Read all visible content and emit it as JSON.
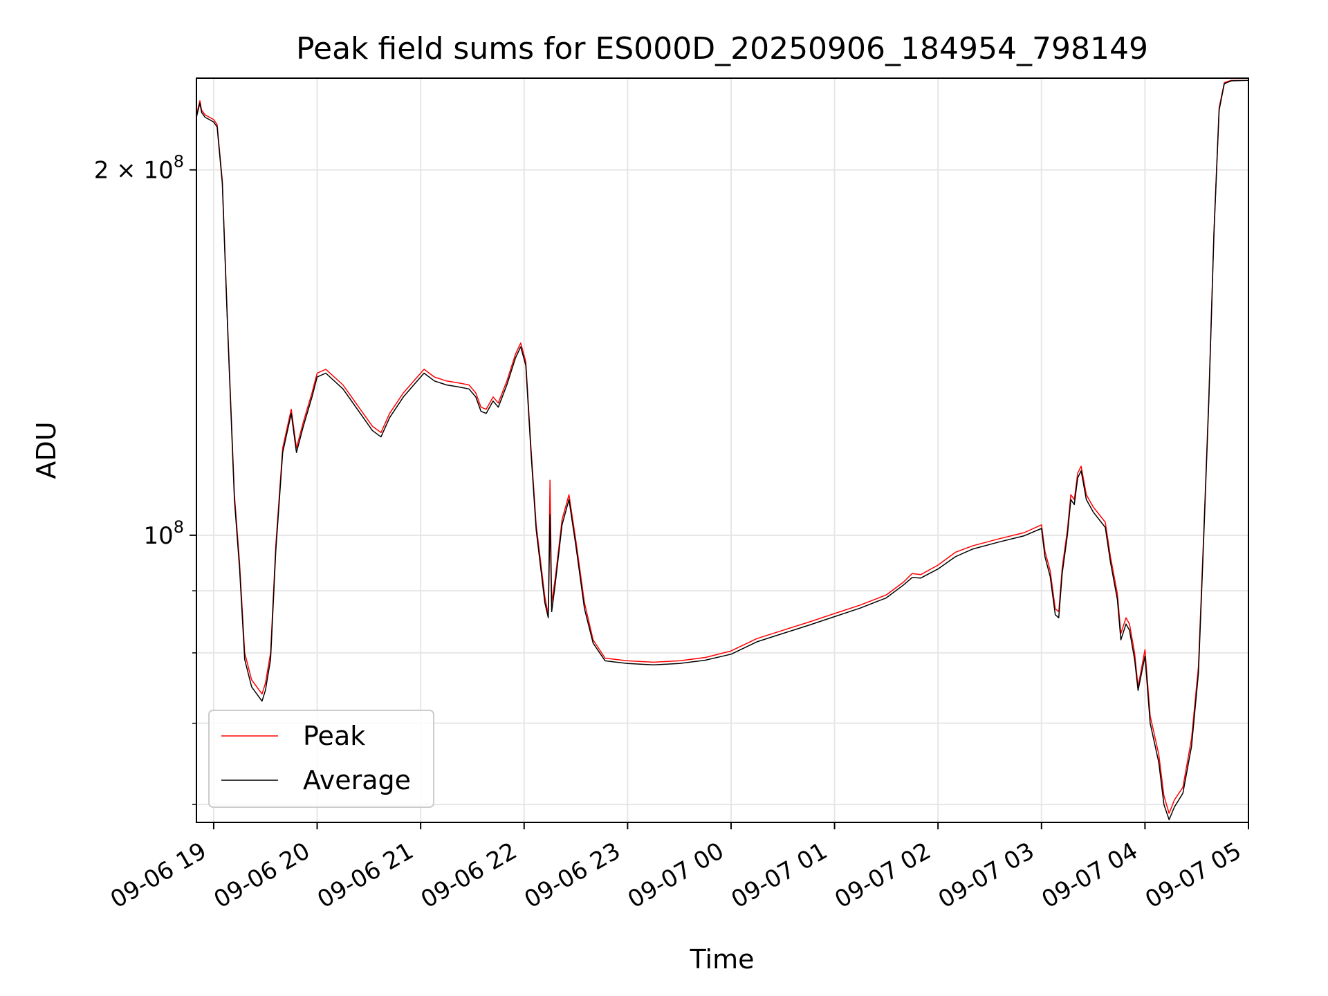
{
  "chart_data": {
    "type": "line",
    "title": "Peak field sums for ES000D_20250906_184954_798149",
    "xlabel": "Time",
    "ylabel": "ADU",
    "y_scale": "log",
    "ylim": [
      58000000,
      238000000
    ],
    "xlim": [
      "2025-09-06 18:50",
      "2025-09-07 05:00"
    ],
    "grid": true,
    "legend_position": "lower-left",
    "x_ticks": [
      {
        "label": "09-06 19",
        "t": "2025-09-06 19:00"
      },
      {
        "label": "09-06 20",
        "t": "2025-09-06 20:00"
      },
      {
        "label": "09-06 21",
        "t": "2025-09-06 21:00"
      },
      {
        "label": "09-06 22",
        "t": "2025-09-06 22:00"
      },
      {
        "label": "09-06 23",
        "t": "2025-09-06 23:00"
      },
      {
        "label": "09-07 00",
        "t": "2025-09-07 00:00"
      },
      {
        "label": "09-07 01",
        "t": "2025-09-07 01:00"
      },
      {
        "label": "09-07 02",
        "t": "2025-09-07 02:00"
      },
      {
        "label": "09-07 03",
        "t": "2025-09-07 03:00"
      },
      {
        "label": "09-07 04",
        "t": "2025-09-07 04:00"
      },
      {
        "label": "09-07 05",
        "t": "2025-09-07 05:00"
      }
    ],
    "y_ticks_major": [
      {
        "value": 100000000,
        "base": "10",
        "exp": "8",
        "prefix": ""
      },
      {
        "value": 200000000,
        "base": "10",
        "exp": "8",
        "prefix": "2 × "
      }
    ],
    "y_ticks_minor": [
      60000000,
      70000000,
      80000000,
      90000000
    ],
    "series": [
      {
        "name": "Peak",
        "color": "#ff0000",
        "points": [
          [
            "2025-09-06 18:50",
            222000000
          ],
          [
            "2025-09-06 18:52",
            228000000
          ],
          [
            "2025-09-06 18:53",
            224000000
          ],
          [
            "2025-09-06 18:55",
            222000000
          ],
          [
            "2025-09-06 19:00",
            220000000
          ],
          [
            "2025-09-06 19:02",
            218000000
          ],
          [
            "2025-09-06 19:05",
            196000000
          ],
          [
            "2025-09-06 19:08",
            150000000
          ],
          [
            "2025-09-06 19:12",
            108000000
          ],
          [
            "2025-09-06 19:15",
            95000000
          ],
          [
            "2025-09-06 19:18",
            80000000
          ],
          [
            "2025-09-06 19:22",
            76000000
          ],
          [
            "2025-09-06 19:28",
            74000000
          ],
          [
            "2025-09-06 19:30",
            75500000
          ],
          [
            "2025-09-06 19:33",
            80000000
          ],
          [
            "2025-09-06 19:36",
            98000000
          ],
          [
            "2025-09-06 19:40",
            118000000
          ],
          [
            "2025-09-06 19:45",
            127000000
          ],
          [
            "2025-09-06 19:48",
            118000000
          ],
          [
            "2025-09-06 19:52",
            124000000
          ],
          [
            "2025-09-06 19:57",
            131000000
          ],
          [
            "2025-09-06 20:00",
            136000000
          ],
          [
            "2025-09-06 20:05",
            137000000
          ],
          [
            "2025-09-06 20:15",
            133000000
          ],
          [
            "2025-09-06 20:25",
            127000000
          ],
          [
            "2025-09-06 20:32",
            123000000
          ],
          [
            "2025-09-06 20:37",
            121500000
          ],
          [
            "2025-09-06 20:42",
            126000000
          ],
          [
            "2025-09-06 20:50",
            131000000
          ],
          [
            "2025-09-06 20:57",
            134500000
          ],
          [
            "2025-09-06 21:02",
            137000000
          ],
          [
            "2025-09-06 21:08",
            135000000
          ],
          [
            "2025-09-06 21:15",
            134000000
          ],
          [
            "2025-09-06 21:22",
            133500000
          ],
          [
            "2025-09-06 21:28",
            133000000
          ],
          [
            "2025-09-06 21:32",
            131000000
          ],
          [
            "2025-09-06 21:35",
            127500000
          ],
          [
            "2025-09-06 21:38",
            127000000
          ],
          [
            "2025-09-06 21:42",
            130000000
          ],
          [
            "2025-09-06 21:45",
            128500000
          ],
          [
            "2025-09-06 21:50",
            134000000
          ],
          [
            "2025-09-06 21:55",
            141000000
          ],
          [
            "2025-09-06 21:58",
            144000000
          ],
          [
            "2025-09-06 22:01",
            139000000
          ],
          [
            "2025-09-06 22:04",
            118000000
          ],
          [
            "2025-09-06 22:07",
            102000000
          ],
          [
            "2025-09-06 22:10",
            94000000
          ],
          [
            "2025-09-06 22:12",
            89000000
          ],
          [
            "2025-09-06 22:14",
            86000000
          ],
          [
            "2025-09-06 22:15",
            111000000
          ],
          [
            "2025-09-06 22:16",
            88000000
          ],
          [
            "2025-09-06 22:18",
            92000000
          ],
          [
            "2025-09-06 22:22",
            103000000
          ],
          [
            "2025-09-06 22:26",
            108000000
          ],
          [
            "2025-09-06 22:30",
            99000000
          ],
          [
            "2025-09-06 22:35",
            88000000
          ],
          [
            "2025-09-06 22:40",
            82000000
          ],
          [
            "2025-09-06 22:47",
            79200000
          ],
          [
            "2025-09-06 23:00",
            78800000
          ],
          [
            "2025-09-06 23:15",
            78600000
          ],
          [
            "2025-09-06 23:30",
            78800000
          ],
          [
            "2025-09-06 23:45",
            79300000
          ],
          [
            "2025-09-07 00:00",
            80300000
          ],
          [
            "2025-09-07 00:15",
            82200000
          ],
          [
            "2025-09-07 00:30",
            83500000
          ],
          [
            "2025-09-07 00:45",
            84800000
          ],
          [
            "2025-09-07 01:00",
            86200000
          ],
          [
            "2025-09-07 01:15",
            87600000
          ],
          [
            "2025-09-07 01:30",
            89300000
          ],
          [
            "2025-09-07 01:40",
            91500000
          ],
          [
            "2025-09-07 01:45",
            93000000
          ],
          [
            "2025-09-07 01:50",
            92800000
          ],
          [
            "2025-09-07 02:00",
            94500000
          ],
          [
            "2025-09-07 02:10",
            96800000
          ],
          [
            "2025-09-07 02:20",
            98000000
          ],
          [
            "2025-09-07 02:35",
            99300000
          ],
          [
            "2025-09-07 02:50",
            100500000
          ],
          [
            "2025-09-07 03:00",
            102000000
          ],
          [
            "2025-09-07 03:02",
            97000000
          ],
          [
            "2025-09-07 03:05",
            93500000
          ],
          [
            "2025-09-07 03:08",
            87000000
          ],
          [
            "2025-09-07 03:10",
            86500000
          ],
          [
            "2025-09-07 03:12",
            94000000
          ],
          [
            "2025-09-07 03:15",
            101000000
          ],
          [
            "2025-09-07 03:17",
            108000000
          ],
          [
            "2025-09-07 03:19",
            107000000
          ],
          [
            "2025-09-07 03:21",
            112500000
          ],
          [
            "2025-09-07 03:23",
            114000000
          ],
          [
            "2025-09-07 03:26",
            108000000
          ],
          [
            "2025-09-07 03:30",
            105500000
          ],
          [
            "2025-09-07 03:37",
            102500000
          ],
          [
            "2025-09-07 03:40",
            96000000
          ],
          [
            "2025-09-07 03:44",
            89500000
          ],
          [
            "2025-09-07 03:46",
            83000000
          ],
          [
            "2025-09-07 03:49",
            85500000
          ],
          [
            "2025-09-07 03:51",
            84500000
          ],
          [
            "2025-09-07 03:54",
            80000000
          ],
          [
            "2025-09-07 03:56",
            75000000
          ],
          [
            "2025-09-07 04:00",
            80500000
          ],
          [
            "2025-09-07 04:03",
            71000000
          ],
          [
            "2025-09-07 04:08",
            66000000
          ],
          [
            "2025-09-07 04:11",
            61000000
          ],
          [
            "2025-09-07 04:14",
            59000000
          ],
          [
            "2025-09-07 04:17",
            60500000
          ],
          [
            "2025-09-07 04:22",
            62000000
          ],
          [
            "2025-09-07 04:27",
            68000000
          ],
          [
            "2025-09-07 04:31",
            78000000
          ],
          [
            "2025-09-07 04:34",
            100000000
          ],
          [
            "2025-09-07 04:37",
            130000000
          ],
          [
            "2025-09-07 04:40",
            178000000
          ],
          [
            "2025-09-07 04:43",
            225000000
          ],
          [
            "2025-09-07 04:46",
            236000000
          ],
          [
            "2025-09-07 04:50",
            237000000
          ],
          [
            "2025-09-07 05:00",
            237000000
          ]
        ]
      },
      {
        "name": "Average",
        "color": "#000000",
        "points": [
          [
            "2025-09-06 18:50",
            221000000
          ],
          [
            "2025-09-06 18:52",
            227000000
          ],
          [
            "2025-09-06 18:53",
            223000000
          ],
          [
            "2025-09-06 18:55",
            221000000
          ],
          [
            "2025-09-06 19:00",
            219000000
          ],
          [
            "2025-09-06 19:02",
            217000000
          ],
          [
            "2025-09-06 19:05",
            195000000
          ],
          [
            "2025-09-06 19:08",
            149000000
          ],
          [
            "2025-09-06 19:12",
            107000000
          ],
          [
            "2025-09-06 19:15",
            94000000
          ],
          [
            "2025-09-06 19:18",
            79000000
          ],
          [
            "2025-09-06 19:22",
            75000000
          ],
          [
            "2025-09-06 19:28",
            73000000
          ],
          [
            "2025-09-06 19:30",
            74500000
          ],
          [
            "2025-09-06 19:33",
            79000000
          ],
          [
            "2025-09-06 19:36",
            97000000
          ],
          [
            "2025-09-06 19:40",
            117000000
          ],
          [
            "2025-09-06 19:45",
            126000000
          ],
          [
            "2025-09-06 19:48",
            117000000
          ],
          [
            "2025-09-06 19:52",
            123000000
          ],
          [
            "2025-09-06 19:57",
            130000000
          ],
          [
            "2025-09-06 20:00",
            135000000
          ],
          [
            "2025-09-06 20:05",
            136000000
          ],
          [
            "2025-09-06 20:15",
            132000000
          ],
          [
            "2025-09-06 20:25",
            126000000
          ],
          [
            "2025-09-06 20:32",
            122000000
          ],
          [
            "2025-09-06 20:37",
            120500000
          ],
          [
            "2025-09-06 20:42",
            125000000
          ],
          [
            "2025-09-06 20:50",
            130000000
          ],
          [
            "2025-09-06 20:57",
            133500000
          ],
          [
            "2025-09-06 21:02",
            136000000
          ],
          [
            "2025-09-06 21:08",
            134000000
          ],
          [
            "2025-09-06 21:15",
            133000000
          ],
          [
            "2025-09-06 21:22",
            132500000
          ],
          [
            "2025-09-06 21:28",
            132000000
          ],
          [
            "2025-09-06 21:32",
            130000000
          ],
          [
            "2025-09-06 21:35",
            126500000
          ],
          [
            "2025-09-06 21:38",
            126000000
          ],
          [
            "2025-09-06 21:42",
            129000000
          ],
          [
            "2025-09-06 21:45",
            127500000
          ],
          [
            "2025-09-06 21:50",
            133000000
          ],
          [
            "2025-09-06 21:55",
            140000000
          ],
          [
            "2025-09-06 21:58",
            143000000
          ],
          [
            "2025-09-06 22:01",
            138000000
          ],
          [
            "2025-09-06 22:04",
            117000000
          ],
          [
            "2025-09-06 22:07",
            101000000
          ],
          [
            "2025-09-06 22:10",
            93000000
          ],
          [
            "2025-09-06 22:12",
            88000000
          ],
          [
            "2025-09-06 22:14",
            85500000
          ],
          [
            "2025-09-06 22:15",
            104000000
          ],
          [
            "2025-09-06 22:16",
            86500000
          ],
          [
            "2025-09-06 22:18",
            91000000
          ],
          [
            "2025-09-06 22:22",
            102000000
          ],
          [
            "2025-09-06 22:26",
            107000000
          ],
          [
            "2025-09-06 22:30",
            98000000
          ],
          [
            "2025-09-06 22:35",
            87000000
          ],
          [
            "2025-09-06 22:40",
            81500000
          ],
          [
            "2025-09-06 22:47",
            78800000
          ],
          [
            "2025-09-06 23:00",
            78400000
          ],
          [
            "2025-09-06 23:15",
            78200000
          ],
          [
            "2025-09-06 23:30",
            78400000
          ],
          [
            "2025-09-06 23:45",
            78900000
          ],
          [
            "2025-09-07 00:00",
            79800000
          ],
          [
            "2025-09-07 00:15",
            81700000
          ],
          [
            "2025-09-07 00:30",
            83000000
          ],
          [
            "2025-09-07 00:45",
            84300000
          ],
          [
            "2025-09-07 01:00",
            85700000
          ],
          [
            "2025-09-07 01:15",
            87100000
          ],
          [
            "2025-09-07 01:30",
            88800000
          ],
          [
            "2025-09-07 01:40",
            91000000
          ],
          [
            "2025-09-07 01:45",
            92300000
          ],
          [
            "2025-09-07 01:50",
            92200000
          ],
          [
            "2025-09-07 02:00",
            93800000
          ],
          [
            "2025-09-07 02:10",
            96000000
          ],
          [
            "2025-09-07 02:20",
            97400000
          ],
          [
            "2025-09-07 02:35",
            98700000
          ],
          [
            "2025-09-07 02:50",
            99900000
          ],
          [
            "2025-09-07 03:00",
            101300000
          ],
          [
            "2025-09-07 03:02",
            96000000
          ],
          [
            "2025-09-07 03:05",
            92500000
          ],
          [
            "2025-09-07 03:08",
            86000000
          ],
          [
            "2025-09-07 03:10",
            85500000
          ],
          [
            "2025-09-07 03:12",
            93000000
          ],
          [
            "2025-09-07 03:15",
            100000000
          ],
          [
            "2025-09-07 03:17",
            107000000
          ],
          [
            "2025-09-07 03:19",
            106000000
          ],
          [
            "2025-09-07 03:21",
            111500000
          ],
          [
            "2025-09-07 03:23",
            113000000
          ],
          [
            "2025-09-07 03:26",
            107000000
          ],
          [
            "2025-09-07 03:30",
            104500000
          ],
          [
            "2025-09-07 03:37",
            101500000
          ],
          [
            "2025-09-07 03:40",
            95000000
          ],
          [
            "2025-09-07 03:44",
            88500000
          ],
          [
            "2025-09-07 03:46",
            82000000
          ],
          [
            "2025-09-07 03:49",
            84500000
          ],
          [
            "2025-09-07 03:51",
            83500000
          ],
          [
            "2025-09-07 03:54",
            79000000
          ],
          [
            "2025-09-07 03:56",
            74500000
          ],
          [
            "2025-09-07 04:00",
            79500000
          ],
          [
            "2025-09-07 04:03",
            70000000
          ],
          [
            "2025-09-07 04:08",
            65000000
          ],
          [
            "2025-09-07 04:11",
            60000000
          ],
          [
            "2025-09-07 04:14",
            58300000
          ],
          [
            "2025-09-07 04:17",
            59700000
          ],
          [
            "2025-09-07 04:22",
            61300000
          ],
          [
            "2025-09-07 04:27",
            67000000
          ],
          [
            "2025-09-07 04:31",
            77000000
          ],
          [
            "2025-09-07 04:34",
            99000000
          ],
          [
            "2025-09-07 04:37",
            129000000
          ],
          [
            "2025-09-07 04:40",
            177000000
          ],
          [
            "2025-09-07 04:43",
            224000000
          ],
          [
            "2025-09-07 04:46",
            235500000
          ],
          [
            "2025-09-07 04:50",
            236800000
          ],
          [
            "2025-09-07 05:00",
            237000000
          ]
        ]
      }
    ]
  }
}
